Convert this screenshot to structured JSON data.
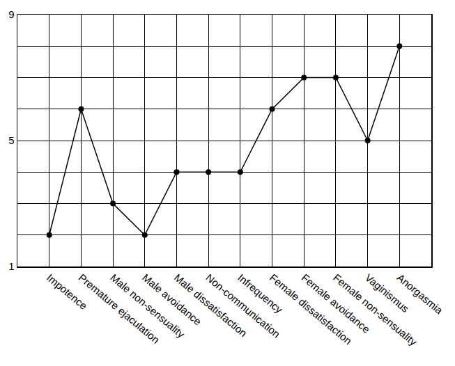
{
  "chart_data": {
    "type": "line",
    "categories": [
      "Impotence",
      "Premature ejaculation",
      "Male non-sensuality",
      "Male avoidance",
      "Male dissatisfaction",
      "Non-communication",
      "Infrequency",
      "Female dissatisfaction",
      "Female avoidance",
      "Female non-sensuality",
      "Vaginismus",
      "Anorgasmia"
    ],
    "values": [
      2,
      6,
      3,
      2,
      4,
      4,
      4,
      6,
      7,
      7,
      5,
      8
    ],
    "color": "#000000",
    "marker": "circle",
    "line_style": "solid",
    "ylim": [
      1,
      9
    ],
    "yticks": [
      1,
      5,
      9
    ],
    "grid": true
  }
}
